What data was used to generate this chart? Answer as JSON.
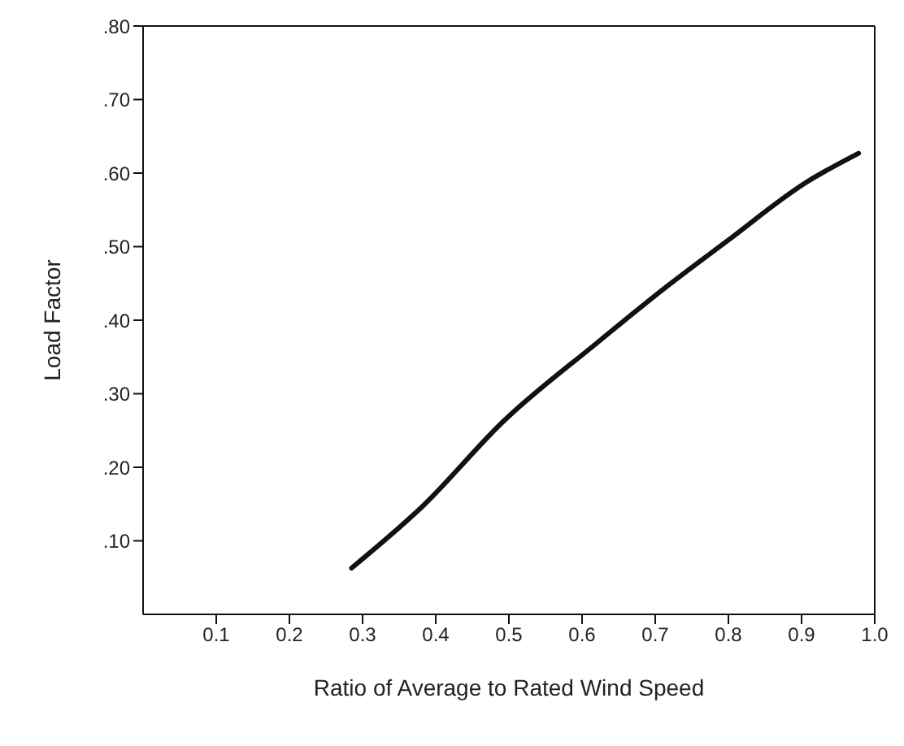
{
  "chart_data": {
    "type": "line",
    "xlabel": "Ratio of Average to Rated Wind Speed",
    "ylabel": "Load Factor",
    "x": [
      0.285,
      0.382,
      0.493,
      0.619,
      0.716,
      0.8,
      0.904,
      0.978
    ],
    "series": [
      {
        "color": "#111111",
        "values": [
          0.063,
          0.147,
          0.263,
          0.368,
          0.446,
          0.509,
          0.586,
          0.627
        ]
      }
    ],
    "xlim": [
      0,
      1.0
    ],
    "xticks": [
      {
        "value": 0.1,
        "label": "0.1"
      },
      {
        "value": 0.2,
        "label": "0.2"
      },
      {
        "value": 0.3,
        "label": "0.3"
      },
      {
        "value": 0.4,
        "label": "0.4"
      },
      {
        "value": 0.5,
        "label": "0.5"
      },
      {
        "value": 0.6,
        "label": "0.6"
      },
      {
        "value": 0.7,
        "label": "0.7"
      },
      {
        "value": 0.8,
        "label": "0.8"
      },
      {
        "value": 0.9,
        "label": "0.9"
      },
      {
        "value": 1.0,
        "label": "1.0"
      }
    ],
    "ylim": [
      0,
      0.8
    ],
    "yticks": [
      {
        "value": 0.1,
        "label": ".10"
      },
      {
        "value": 0.2,
        "label": ".20"
      },
      {
        "value": 0.3,
        "label": ".30"
      },
      {
        "value": 0.4,
        "label": ".40"
      },
      {
        "value": 0.5,
        "label": ".50"
      },
      {
        "value": 0.6,
        "label": ".60"
      },
      {
        "value": 0.7,
        "label": ".70"
      },
      {
        "value": 0.8,
        "label": ".80"
      }
    ],
    "grid": false,
    "legend": false,
    "marker": "none",
    "line_style": "solid"
  }
}
